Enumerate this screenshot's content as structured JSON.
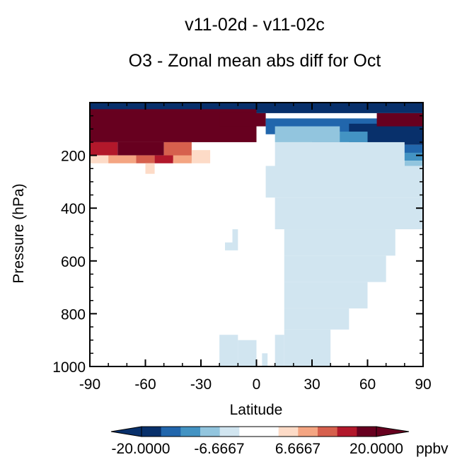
{
  "header": {
    "title": "v11-02d - v11-02c",
    "subtitle": "O3 - Zonal mean abs diff for Oct"
  },
  "chart_data": {
    "type": "heatmap",
    "title": "O3 - Zonal mean abs diff for Oct",
    "subtitle": "v11-02d - v11-02c",
    "xlabel": "Latitude",
    "ylabel": "Pressure (hPa)",
    "xlim": [
      -90,
      90
    ],
    "ylim": [
      1000,
      0
    ],
    "x_ticks": [
      -90,
      -60,
      -30,
      0,
      30,
      60,
      90
    ],
    "y_ticks": [
      200,
      400,
      600,
      800,
      1000
    ],
    "colorbar": {
      "labels": [
        "-20.0000",
        "-6.6667",
        "6.6667",
        "20.0000"
      ],
      "unit": "ppbv",
      "colors": [
        "#08306b",
        "#2166ac",
        "#4393c3",
        "#92c5de",
        "#d1e5f0",
        "#ffffff",
        "#ffffff",
        "#fddbc7",
        "#f4a582",
        "#d6604d",
        "#b2182b",
        "#67001f"
      ]
    },
    "regions": [
      {
        "x0": -90,
        "x1": 90,
        "y0": 0,
        "y1": 40,
        "color": "#08306b"
      },
      {
        "x0": -90,
        "x1": 0,
        "y0": 25,
        "y1": 150,
        "color": "#67001f"
      },
      {
        "x0": -20,
        "x1": 5,
        "y0": 40,
        "y1": 90,
        "color": "#67001f"
      },
      {
        "x0": -90,
        "x1": -75,
        "y0": 150,
        "y1": 200,
        "color": "#b2182b"
      },
      {
        "x0": -75,
        "x1": -50,
        "y0": 150,
        "y1": 200,
        "color": "#67001f"
      },
      {
        "x0": -50,
        "x1": -35,
        "y0": 150,
        "y1": 220,
        "color": "#d6604d"
      },
      {
        "x0": -90,
        "x1": -80,
        "y0": 200,
        "y1": 230,
        "color": "#fddbc7"
      },
      {
        "x0": -80,
        "x1": -65,
        "y0": 200,
        "y1": 230,
        "color": "#f4a582"
      },
      {
        "x0": -65,
        "x1": -55,
        "y0": 200,
        "y1": 230,
        "color": "#d6604d"
      },
      {
        "x0": -55,
        "x1": -45,
        "y0": 200,
        "y1": 230,
        "color": "#b2182b"
      },
      {
        "x0": -45,
        "x1": -35,
        "y0": 200,
        "y1": 230,
        "color": "#f4a582"
      },
      {
        "x0": -35,
        "x1": -25,
        "y0": 180,
        "y1": 230,
        "color": "#fddbc7"
      },
      {
        "x0": -60,
        "x1": -55,
        "y0": 230,
        "y1": 270,
        "color": "#fddbc7"
      },
      {
        "x0": 5,
        "x1": 90,
        "y0": 60,
        "y1": 120,
        "color": "#2166ac"
      },
      {
        "x0": 50,
        "x1": 90,
        "y0": 80,
        "y1": 160,
        "color": "#08306b"
      },
      {
        "x0": 65,
        "x1": 90,
        "y0": 40,
        "y1": 90,
        "color": "#67001f"
      },
      {
        "x0": 30,
        "x1": 60,
        "y0": 110,
        "y1": 150,
        "color": "#4393c3"
      },
      {
        "x0": 60,
        "x1": 90,
        "y0": 160,
        "y1": 200,
        "color": "#2166ac"
      },
      {
        "x0": 70,
        "x1": 90,
        "y0": 190,
        "y1": 220,
        "color": "#4393c3"
      },
      {
        "x0": 10,
        "x1": 45,
        "y0": 90,
        "y1": 150,
        "color": "#92c5de"
      },
      {
        "x0": 80,
        "x1": 90,
        "y0": 220,
        "y1": 240,
        "color": "#92c5de"
      },
      {
        "x0": 10,
        "x1": 80,
        "y0": 150,
        "y1": 240,
        "color": "#d1e5f0"
      },
      {
        "x0": 5,
        "x1": 90,
        "y0": 240,
        "y1": 360,
        "color": "#d1e5f0"
      },
      {
        "x0": 10,
        "x1": 90,
        "y0": 360,
        "y1": 480,
        "color": "#d1e5f0"
      },
      {
        "x0": 15,
        "x1": 75,
        "y0": 480,
        "y1": 580,
        "color": "#d1e5f0"
      },
      {
        "x0": 15,
        "x1": 70,
        "y0": 580,
        "y1": 680,
        "color": "#d1e5f0"
      },
      {
        "x0": 15,
        "x1": 60,
        "y0": 680,
        "y1": 780,
        "color": "#d1e5f0"
      },
      {
        "x0": 15,
        "x1": 50,
        "y0": 780,
        "y1": 860,
        "color": "#d1e5f0"
      },
      {
        "x0": 15,
        "x1": 40,
        "y0": 860,
        "y1": 1000,
        "color": "#d1e5f0"
      },
      {
        "x0": 10,
        "x1": 15,
        "y0": 880,
        "y1": 1000,
        "color": "#d1e5f0"
      },
      {
        "x0": -20,
        "x1": -10,
        "y0": 880,
        "y1": 1000,
        "color": "#d1e5f0"
      },
      {
        "x0": -10,
        "x1": 0,
        "y0": 900,
        "y1": 1000,
        "color": "#d1e5f0"
      },
      {
        "x0": 3,
        "x1": 6,
        "y0": 950,
        "y1": 1000,
        "color": "#d1e5f0"
      },
      {
        "x0": -13,
        "x1": -10,
        "y0": 480,
        "y1": 560,
        "color": "#d1e5f0"
      },
      {
        "x0": -17,
        "x1": -13,
        "y0": 530,
        "y1": 560,
        "color": "#d1e5f0"
      },
      {
        "x0": 85,
        "x1": 90,
        "y0": 480,
        "y1": 620,
        "color": "#ffffff"
      },
      {
        "x0": 80,
        "x1": 85,
        "y0": 560,
        "y1": 620,
        "color": "#ffffff"
      }
    ]
  }
}
